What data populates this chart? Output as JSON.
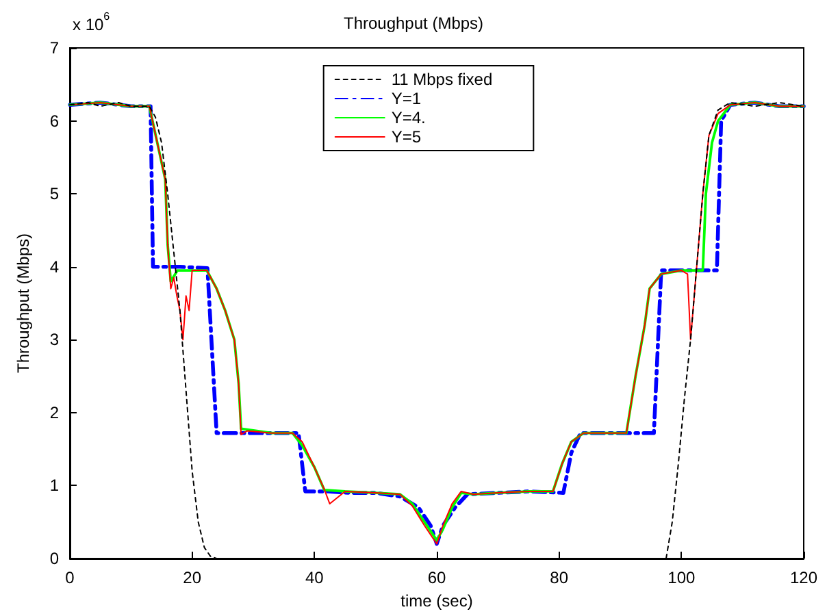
{
  "chart_data": {
    "type": "line",
    "title": "Throughput (Mbps)",
    "xlabel": "time (sec)",
    "ylabel": "Throughput (Mbps)",
    "annotations": [
      "x 10$^{6}$"
    ],
    "xlim": [
      0,
      120
    ],
    "xticks": [
      0,
      20,
      40,
      60,
      80,
      100,
      120
    ],
    "ylim": [
      0,
      7
    ],
    "yticks": [
      0,
      1,
      2,
      3,
      4,
      5,
      6,
      7
    ],
    "grid": false,
    "legend": "top",
    "marker": "none",
    "series": [
      {
        "name": "11 Mbps fixed",
        "color": "#000000",
        "line_style": "dotted",
        "x": [
          0,
          3,
          5,
          8,
          10,
          13,
          14,
          15,
          16,
          17,
          18,
          19,
          20,
          21,
          22,
          23,
          24,
          40,
          60,
          80,
          96,
          97.5,
          98.5,
          99.5,
          100.5,
          101.5,
          102.5,
          103.5,
          104.5,
          106,
          108,
          112,
          116,
          120
        ],
        "values": [
          6.22,
          6.25,
          6.2,
          6.25,
          6.2,
          6.2,
          6.05,
          5.7,
          5.0,
          4.2,
          3.4,
          2.3,
          1.2,
          0.5,
          0.15,
          0.03,
          0,
          0,
          0,
          0,
          0,
          0,
          0.5,
          1.3,
          2.2,
          3.0,
          4.0,
          5.0,
          5.8,
          6.15,
          6.25,
          6.2,
          6.25,
          6.2
        ]
      },
      {
        "name": "Y=1",
        "color": "#0000ff",
        "line_style": "dashed",
        "x": [
          0,
          5,
          10,
          13.2,
          13.6,
          18,
          22.5,
          24,
          30,
          37.4,
          38.5,
          42,
          46,
          50,
          54,
          57,
          59,
          60,
          61,
          63,
          65,
          70,
          75,
          80.7,
          82,
          83.5,
          90,
          95.5,
          96.7,
          100,
          105.8,
          106.5,
          108,
          112,
          116,
          120
        ],
        "values": [
          6.22,
          6.25,
          6.2,
          6.2,
          4.0,
          4.0,
          3.98,
          1.72,
          1.72,
          1.72,
          0.92,
          0.92,
          0.9,
          0.9,
          0.85,
          0.7,
          0.45,
          0.2,
          0.45,
          0.7,
          0.88,
          0.9,
          0.92,
          0.9,
          1.45,
          1.72,
          1.72,
          1.72,
          3.95,
          3.95,
          3.95,
          6.0,
          6.22,
          6.25,
          6.2,
          6.2
        ]
      },
      {
        "name": "Y=4.",
        "color": "#00ff00",
        "line_style": "solid",
        "x": [
          0,
          5,
          10,
          13,
          14.3,
          15.6,
          16,
          16.5,
          17.6,
          20,
          22.4,
          24,
          25.4,
          26.9,
          27.6,
          28,
          33,
          36.4,
          38,
          40,
          41.6,
          45,
          50,
          54,
          56,
          58,
          60,
          61,
          62.5,
          64,
          66,
          70,
          75,
          79,
          80.5,
          82,
          84,
          88,
          91,
          92.5,
          94,
          94.8,
          96.7,
          100,
          103.5,
          104,
          105,
          106,
          108,
          112,
          116,
          120
        ],
        "values": [
          6.22,
          6.25,
          6.2,
          6.2,
          5.7,
          5.2,
          4.3,
          3.8,
          3.95,
          3.95,
          3.95,
          3.7,
          3.4,
          3.0,
          2.4,
          1.78,
          1.72,
          1.72,
          1.55,
          1.25,
          0.94,
          0.92,
          0.9,
          0.88,
          0.75,
          0.5,
          0.25,
          0.4,
          0.7,
          0.9,
          0.88,
          0.9,
          0.92,
          0.92,
          1.3,
          1.6,
          1.72,
          1.72,
          1.72,
          2.5,
          3.2,
          3.7,
          3.9,
          3.95,
          3.95,
          5.0,
          5.7,
          6.0,
          6.22,
          6.25,
          6.2,
          6.2
        ]
      },
      {
        "name": "Y=5",
        "color": "#ff0000",
        "line_style": "solid",
        "x": [
          0,
          5,
          10,
          13,
          14.3,
          15.6,
          16,
          16.5,
          17,
          17.5,
          18,
          18.5,
          19,
          19.5,
          20,
          22.4,
          24,
          25.4,
          26.9,
          27.6,
          28,
          29,
          33,
          36.4,
          38,
          40,
          41.6,
          42.5,
          45,
          50,
          54,
          56,
          58,
          60,
          61,
          62.5,
          64,
          66,
          70,
          75,
          79,
          80.5,
          82,
          84,
          88,
          91,
          92.5,
          94,
          94.8,
          96.7,
          100,
          101,
          101.5,
          102.5,
          103.5,
          104.5,
          106,
          108,
          112,
          116,
          120
        ],
        "values": [
          6.22,
          6.25,
          6.2,
          6.2,
          5.7,
          5.2,
          4.3,
          3.7,
          3.85,
          3.6,
          3.4,
          3.0,
          3.6,
          3.4,
          3.95,
          3.95,
          3.7,
          3.4,
          3.0,
          2.4,
          1.7,
          1.75,
          1.72,
          1.72,
          1.6,
          1.25,
          0.95,
          0.75,
          0.92,
          0.9,
          0.88,
          0.72,
          0.45,
          0.2,
          0.45,
          0.75,
          0.92,
          0.88,
          0.9,
          0.92,
          0.92,
          1.3,
          1.6,
          1.72,
          1.72,
          1.72,
          2.5,
          3.2,
          3.7,
          3.9,
          3.95,
          3.9,
          3.0,
          4.0,
          5.0,
          5.8,
          6.1,
          6.22,
          6.25,
          6.2,
          6.2
        ]
      }
    ]
  }
}
